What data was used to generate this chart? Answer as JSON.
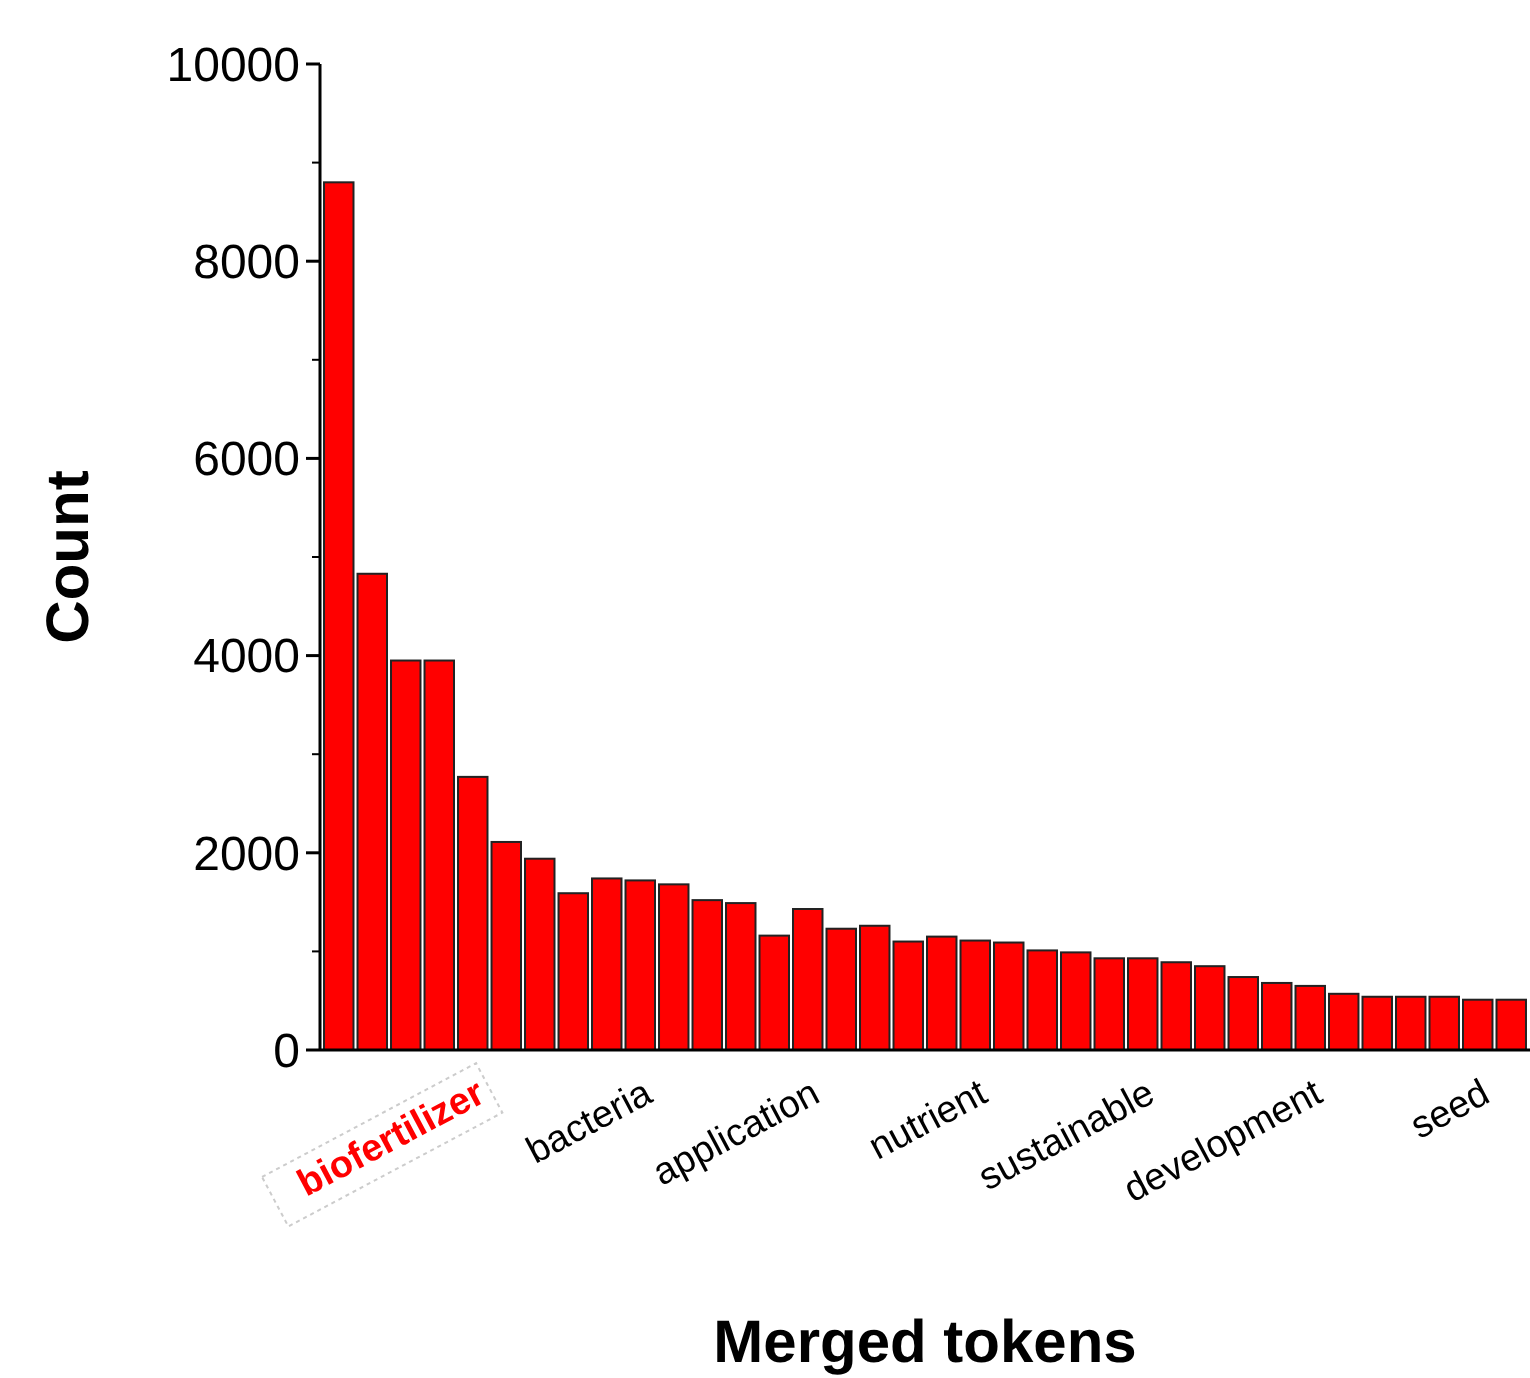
{
  "chart_data": {
    "type": "bar",
    "xlabel": "Merged tokens",
    "ylabel": "Count",
    "categories": [
      null,
      null,
      null,
      null,
      "biofertilizer",
      null,
      null,
      null,
      null,
      "bacteria",
      null,
      null,
      null,
      null,
      "application",
      null,
      null,
      null,
      null,
      "nutrient",
      null,
      null,
      null,
      null,
      "sustainable",
      null,
      null,
      null,
      null,
      "development",
      null,
      null,
      null,
      null,
      "seed",
      null
    ],
    "values": [
      8800,
      4830,
      3950,
      3950,
      2770,
      2110,
      1940,
      1590,
      1740,
      1720,
      1680,
      1520,
      1490,
      1160,
      1430,
      1230,
      1260,
      1100,
      1150,
      1110,
      1090,
      1010,
      990,
      930,
      930,
      890,
      850,
      740,
      680,
      650,
      570,
      540,
      540,
      540,
      510,
      510
    ],
    "color": "#ff0000",
    "ylim": [
      0,
      10000
    ],
    "yticks": [
      0,
      2000,
      4000,
      6000,
      8000,
      10000
    ]
  }
}
